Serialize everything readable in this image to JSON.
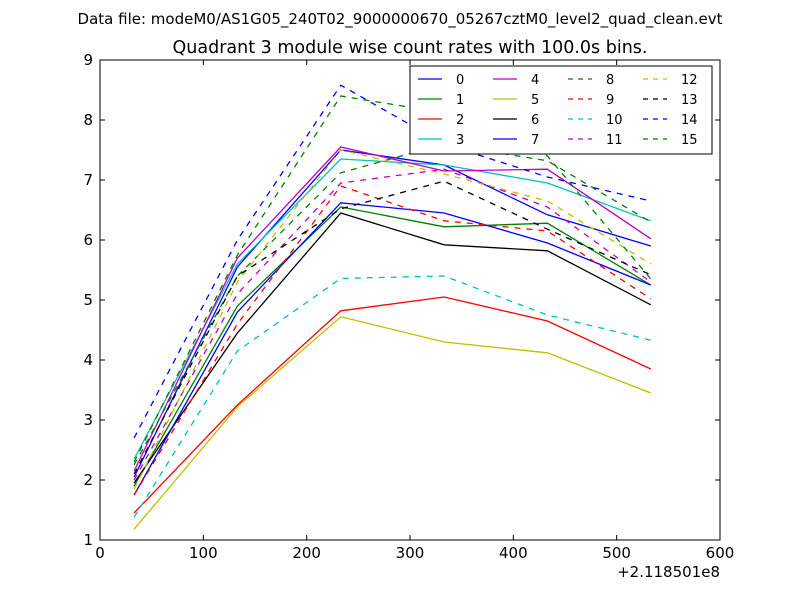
{
  "chart_data": {
    "type": "line",
    "suptitle": "Data file: modeM0/AS1G05_240T02_9000000670_05267cztM0_level2_quad_clean.evt",
    "title": "Quadrant 3 module wise count rates with 100.0s bins.",
    "xlabel": "",
    "ylabel": "",
    "x_offset_label": "+2.118501e8",
    "xlim": [
      0,
      600
    ],
    "ylim": [
      1,
      9
    ],
    "xticks": [
      "0",
      "100",
      "200",
      "300",
      "400",
      "500",
      "600"
    ],
    "yticks": [
      "1",
      "2",
      "3",
      "4",
      "5",
      "6",
      "7",
      "8",
      "9"
    ],
    "grid": false,
    "legend_position": "top-right",
    "x": [
      33,
      133,
      233,
      333,
      433,
      533
    ],
    "series": [
      {
        "name": "0",
        "color": "#0000ff",
        "dash": "solid",
        "values": [
          2.05,
          5.55,
          7.5,
          7.25,
          6.42,
          5.9
        ]
      },
      {
        "name": "1",
        "color": "#008000",
        "dash": "solid",
        "values": [
          1.9,
          4.9,
          6.55,
          6.22,
          6.28,
          5.25
        ]
      },
      {
        "name": "2",
        "color": "#ff0000",
        "dash": "solid",
        "values": [
          1.45,
          3.25,
          4.82,
          5.05,
          4.65,
          3.85
        ]
      },
      {
        "name": "3",
        "color": "#00bfbf",
        "dash": "solid",
        "values": [
          2.35,
          5.6,
          7.35,
          7.25,
          6.95,
          6.32
        ]
      },
      {
        "name": "4",
        "color": "#bf00bf",
        "dash": "solid",
        "values": [
          2.15,
          5.7,
          7.55,
          7.15,
          7.18,
          6.02
        ]
      },
      {
        "name": "5",
        "color": "#bfbf00",
        "dash": "solid",
        "values": [
          1.18,
          3.22,
          4.72,
          4.3,
          4.12,
          3.45
        ]
      },
      {
        "name": "6",
        "color": "#000000",
        "dash": "solid",
        "values": [
          1.95,
          4.45,
          6.45,
          5.92,
          5.82,
          4.92
        ]
      },
      {
        "name": "7",
        "color": "#0000ff",
        "dash": "solid",
        "values": [
          1.75,
          4.8,
          6.62,
          6.45,
          5.95,
          5.25
        ]
      },
      {
        "name": "8",
        "color": "#008000",
        "dash": "dashed",
        "values": [
          2.25,
          5.4,
          7.12,
          7.6,
          7.32,
          6.3
        ]
      },
      {
        "name": "9",
        "color": "#ff0000",
        "dash": "dashed",
        "values": [
          1.75,
          4.6,
          6.9,
          6.32,
          6.15,
          5.02
        ]
      },
      {
        "name": "10",
        "color": "#00bfbf",
        "dash": "dashed",
        "values": [
          1.38,
          4.15,
          5.36,
          5.4,
          4.75,
          4.33
        ]
      },
      {
        "name": "11",
        "color": "#bf00bf",
        "dash": "dashed",
        "values": [
          2.0,
          5.1,
          6.95,
          7.18,
          6.55,
          5.3
        ]
      },
      {
        "name": "12",
        "color": "#bfbf00",
        "dash": "dashed",
        "values": [
          1.85,
          5.3,
          7.5,
          7.1,
          6.65,
          5.6
        ]
      },
      {
        "name": "13",
        "color": "#000000",
        "dash": "dashed",
        "values": [
          2.1,
          5.4,
          6.52,
          6.98,
          6.18,
          5.42
        ]
      },
      {
        "name": "14",
        "color": "#0000ff",
        "dash": "dashed",
        "values": [
          2.7,
          6.0,
          8.58,
          7.6,
          7.05,
          6.65
        ]
      },
      {
        "name": "15",
        "color": "#008000",
        "dash": "dashed",
        "values": [
          2.3,
          5.75,
          8.4,
          8.12,
          7.4,
          5.35
        ]
      }
    ]
  }
}
